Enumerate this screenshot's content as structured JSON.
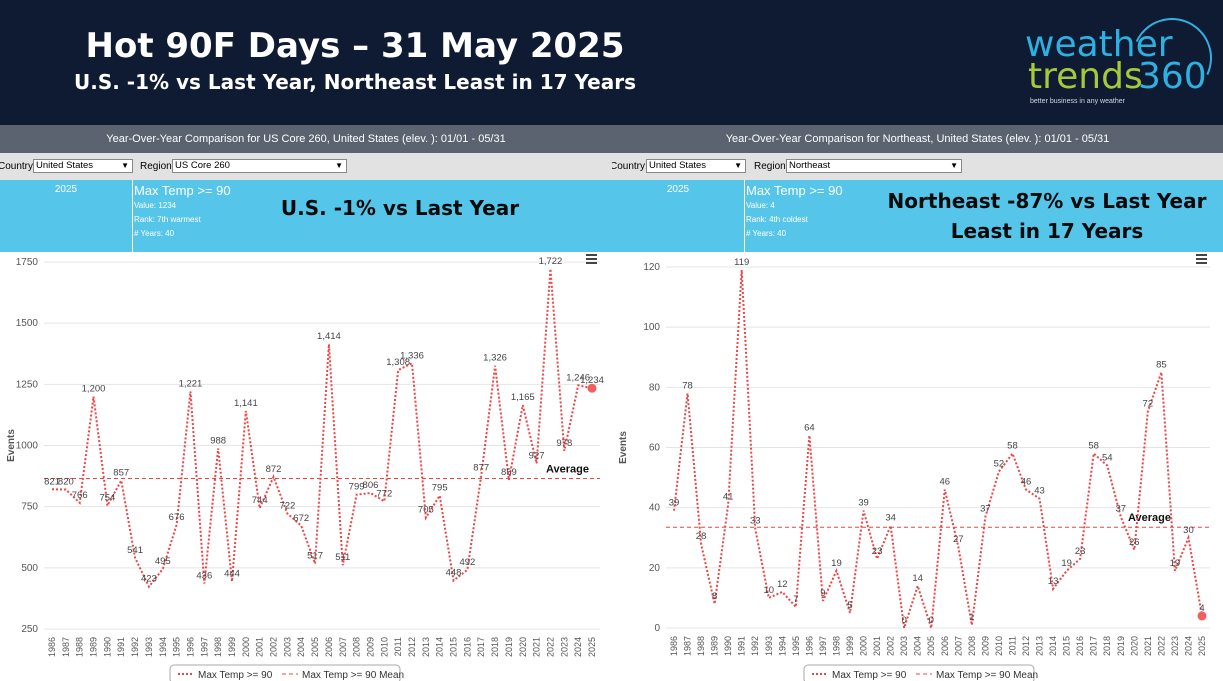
{
  "header": {
    "title": "Hot 90F Days – 31 May 2025",
    "subtitle": "U.S. -1% vs Last Year, Northeast Least in 17 Years",
    "logo_line1": "weather",
    "logo_line2": "trends",
    "logo_num": "360",
    "logo_tagline": "better business in any weather"
  },
  "left": {
    "header_text": "Year-Over-Year Comparison for US Core 260, United States (elev. ): 01/01 - 05/31",
    "country_label": "Country:",
    "country_value": "United States",
    "region_label": "Region:",
    "region_value": "US Core 260",
    "year": "2025",
    "metric": "Max Temp >= 90",
    "value_line": "Value: 1234",
    "rank_line": "Rank: 7th warmest",
    "years_line": "# Years: 40",
    "callout": "U.S. -1% vs Last Year",
    "legend_series": "Max Temp >= 90",
    "legend_mean": "Max Temp >= 90 Mean"
  },
  "right": {
    "header_text": "Year-Over-Year Comparison for Northeast, United States (elev. ): 01/01 - 05/31",
    "country_label": "Country:",
    "country_value": "United States",
    "region_label": "Region:",
    "region_value": "Northeast",
    "year": "2025",
    "metric": "Max Temp >= 90",
    "value_line": "Value: 4",
    "rank_line": "Rank: 4th coldest",
    "years_line": "# Years: 40",
    "callout": "Northeast -87% vs Last Year\nLeast in 17 Years",
    "legend_series": "Max Temp >= 90",
    "legend_mean": "Max Temp >= 90 Mean"
  },
  "colors": {
    "line": "#ee4444",
    "mean": "#ee4444",
    "marker": "#f06060",
    "grid": "#e4e4e4",
    "banner": "#0f1b33",
    "info": "#56c5ea"
  },
  "chart_data": [
    {
      "type": "line",
      "title": "",
      "xlabel": "",
      "ylabel": "Events",
      "ylim": [
        250,
        1750
      ],
      "yticks": [
        250,
        500,
        750,
        1000,
        1250,
        1500,
        1750
      ],
      "average_label": "Average",
      "average_value": 865,
      "x": [
        1986,
        1987,
        1988,
        1989,
        1990,
        1991,
        1992,
        1993,
        1994,
        1995,
        1996,
        1997,
        1998,
        1999,
        2000,
        2001,
        2002,
        2003,
        2004,
        2005,
        2006,
        2007,
        2008,
        2009,
        2010,
        2011,
        2012,
        2013,
        2014,
        2015,
        2016,
        2017,
        2018,
        2019,
        2020,
        2021,
        2022,
        2023,
        2024,
        2025
      ],
      "series": [
        {
          "name": "Max Temp >= 90",
          "values": [
            821,
            820,
            766,
            1200,
            754,
            857,
            541,
            423,
            495,
            676,
            1221,
            436,
            988,
            444,
            1141,
            744,
            872,
            722,
            672,
            517,
            1414,
            511,
            799,
            806,
            772,
            1308,
            1336,
            705,
            795,
            448,
            492,
            877,
            1326,
            859,
            1165,
            927,
            1722,
            978,
            1246,
            1234
          ],
          "labels": [
            "821",
            "820",
            "766",
            "1,200",
            "754",
            "857",
            "541",
            "423",
            "495",
            "676",
            "1,221",
            "436",
            "988",
            "444",
            "1,141",
            "744",
            "872",
            "722",
            "672",
            "517",
            "1,414",
            "511",
            "799",
            "806",
            "772",
            "1,308",
            "1,336",
            "705",
            "795",
            "448",
            "492",
            "877",
            "1,326",
            "859",
            "1,165",
            "927",
            "1,722",
            "978",
            "1,246",
            "1,234"
          ]
        }
      ],
      "legend": [
        "Max Temp >= 90",
        "Max Temp >= 90 Mean"
      ]
    },
    {
      "type": "line",
      "title": "",
      "xlabel": "",
      "ylabel": "Events",
      "ylim": [
        0,
        120
      ],
      "yticks": [
        0,
        20,
        40,
        60,
        80,
        100,
        120
      ],
      "average_label": "Average",
      "average_value": 33.5,
      "x": [
        1986,
        1987,
        1988,
        1989,
        1990,
        1991,
        1992,
        1993,
        1994,
        1995,
        1996,
        1997,
        1998,
        1999,
        2000,
        2001,
        2002,
        2003,
        2004,
        2005,
        2006,
        2007,
        2008,
        2009,
        2010,
        2011,
        2012,
        2013,
        2014,
        2015,
        2016,
        2017,
        2018,
        2019,
        2020,
        2021,
        2022,
        2023,
        2024,
        2025
      ],
      "series": [
        {
          "name": "Max Temp >= 90",
          "values": [
            39,
            78,
            28,
            8,
            41,
            119,
            33,
            10,
            12,
            7,
            64,
            9,
            19,
            5,
            39,
            23,
            34,
            0,
            14,
            0,
            46,
            27,
            1,
            37,
            52,
            58,
            46,
            43,
            13,
            19,
            23,
            58,
            54,
            37,
            26,
            72,
            85,
            19,
            30,
            4
          ],
          "labels": [
            "39",
            "78",
            "28",
            "8",
            "41",
            "119",
            "33",
            "10",
            "12",
            "7",
            "64",
            "9",
            "19",
            "5",
            "39",
            "23",
            "34",
            "0",
            "14",
            "0",
            "46",
            "27",
            "1",
            "37",
            "52",
            "58",
            "46",
            "43",
            "13",
            "19",
            "23",
            "58",
            "54",
            "37",
            "26",
            "72",
            "85",
            "19",
            "30",
            "4"
          ]
        }
      ],
      "legend": [
        "Max Temp >= 90",
        "Max Temp >= 90 Mean"
      ]
    }
  ]
}
